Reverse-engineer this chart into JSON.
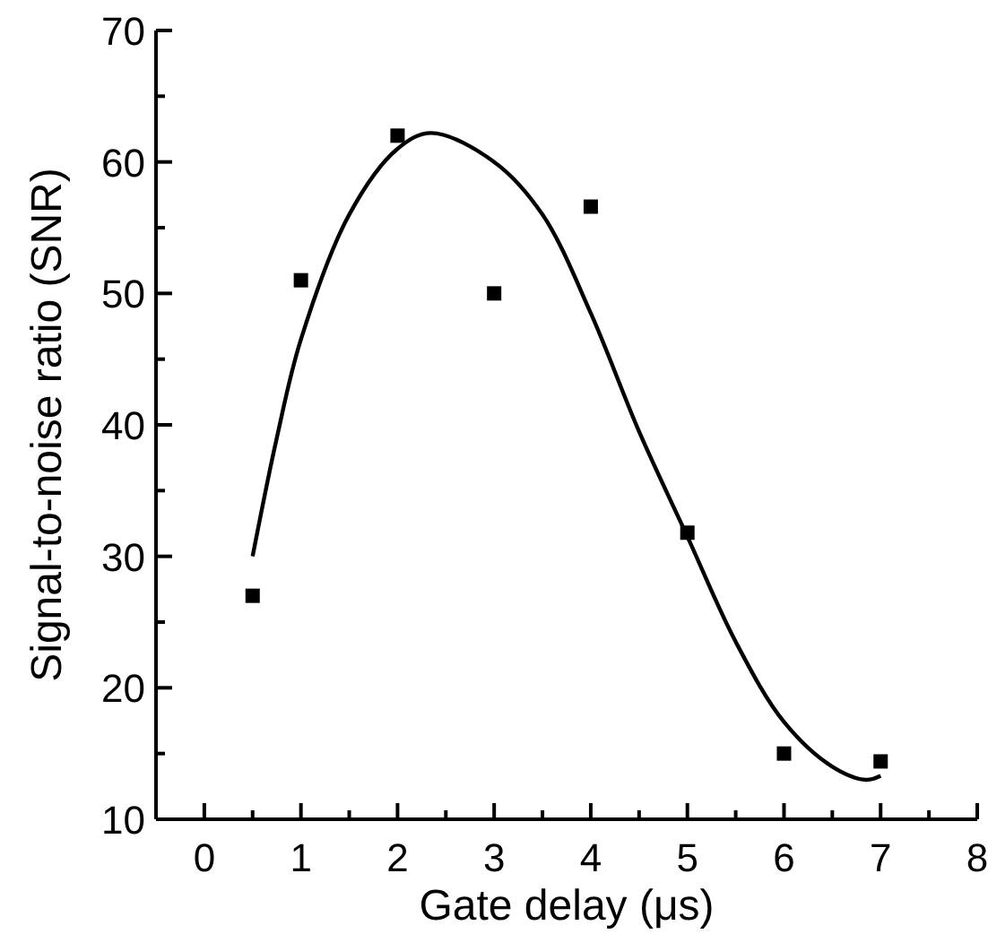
{
  "chart_data": {
    "type": "scatter",
    "xlabel": "Gate delay (μs)",
    "ylabel": "Signal-to-noise ratio (SNR)",
    "xlim": [
      -0.5,
      8
    ],
    "ylim": [
      10,
      70
    ],
    "xticks": [
      0,
      1,
      2,
      3,
      4,
      5,
      6,
      7,
      8
    ],
    "yticks": [
      10,
      20,
      30,
      40,
      50,
      60,
      70
    ],
    "grid": false,
    "series": [
      {
        "marker": "square",
        "color": "#000000",
        "x": [
          0.5,
          1,
          2,
          3,
          4,
          5,
          6,
          7
        ],
        "values": [
          27,
          51,
          62,
          50,
          56.6,
          31.8,
          15,
          14.4
        ]
      },
      {
        "type": "line",
        "marker": "none",
        "color": "#000000",
        "x": [
          0.5,
          0.75,
          1,
          1.5,
          2,
          2.35,
          3,
          3.5,
          4,
          4.5,
          5,
          5.5,
          6,
          6.5,
          6.85,
          7
        ],
        "values": [
          30,
          39,
          46.5,
          56,
          61,
          62.2,
          60,
          56,
          48.5,
          39.5,
          31.5,
          23.5,
          17.4,
          14,
          13,
          13.3
        ]
      }
    ]
  }
}
